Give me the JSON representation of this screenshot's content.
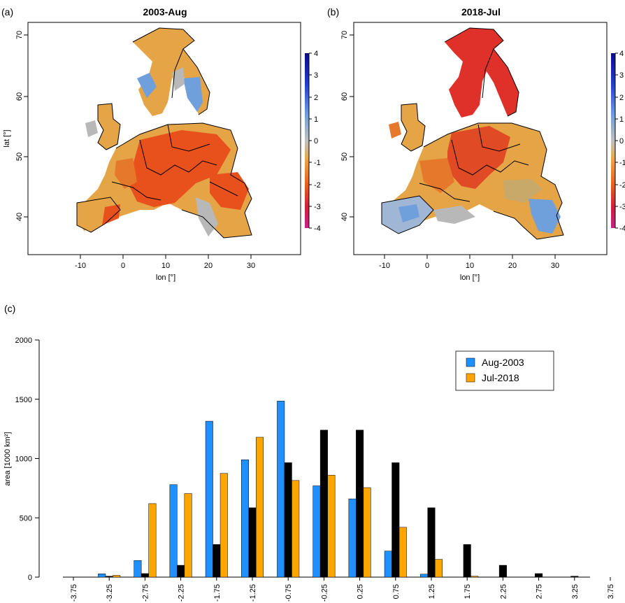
{
  "maps": [
    {
      "panel_label": "(a)",
      "title": "2003-Aug",
      "xlabel": "lon [°]",
      "ylabel": "lat [°]",
      "x_ticks": [
        "-10",
        "0",
        "10",
        "20",
        "30"
      ],
      "y_ticks": [
        "40",
        "50",
        "60",
        "70"
      ],
      "colorbar_ticks": [
        "4",
        "3",
        "2",
        "1",
        "0",
        "-1",
        "-2",
        "-3",
        "-4"
      ]
    },
    {
      "panel_label": "(b)",
      "title": "2018-Jul",
      "xlabel": "lon [°]",
      "ylabel": "",
      "x_ticks": [
        "-10",
        "0",
        "10",
        "20",
        "30"
      ],
      "y_ticks": [
        "40",
        "50",
        "60",
        "70"
      ],
      "colorbar_ticks": [
        "4",
        "3",
        "2",
        "1",
        "0",
        "-1",
        "-2",
        "-3",
        "-4"
      ]
    }
  ],
  "colors": {
    "aug2003": "#1e90ff",
    "jul2018": "#ffa500",
    "third_series": "#000000",
    "drought_strong": "#e8401c",
    "drought_moderate": "#e8a440",
    "wet": "#6fa0dc",
    "neutral": "#b8b8b8"
  },
  "chart_data": {
    "type": "bar",
    "panel_label": "(c)",
    "title": "",
    "xlabel": "",
    "ylabel": "area [1000 km²]",
    "ylim": [
      0,
      2000
    ],
    "y_ticks": [
      "0",
      "500",
      "1000",
      "1500",
      "2000"
    ],
    "grid": false,
    "legend_position": "top-right",
    "categories": [
      "-3.75",
      "-3.25",
      "-2.75",
      "-2.25",
      "-1.75",
      "-1.25",
      "-0.75",
      "-0.25",
      "0.25",
      "0.75",
      "1.25",
      "1.75",
      "2.25",
      "2.75",
      "3.25",
      "3.75"
    ],
    "series": [
      {
        "name": "Aug-2003",
        "color": "#1e90ff",
        "values": [
          0,
          28,
          140,
          780,
          1315,
          990,
          1485,
          770,
          660,
          220,
          25,
          0,
          0,
          0,
          0,
          0
        ]
      },
      {
        "color": "#000000",
        "values": [
          0,
          8,
          30,
          100,
          275,
          585,
          965,
          1240,
          1240,
          965,
          585,
          275,
          100,
          30,
          8,
          0
        ]
      },
      {
        "name": "Jul-2018",
        "color": "#ffa500",
        "values": [
          0,
          15,
          620,
          705,
          875,
          1180,
          815,
          860,
          755,
          420,
          150,
          8,
          0,
          0,
          0,
          0
        ]
      }
    ]
  }
}
